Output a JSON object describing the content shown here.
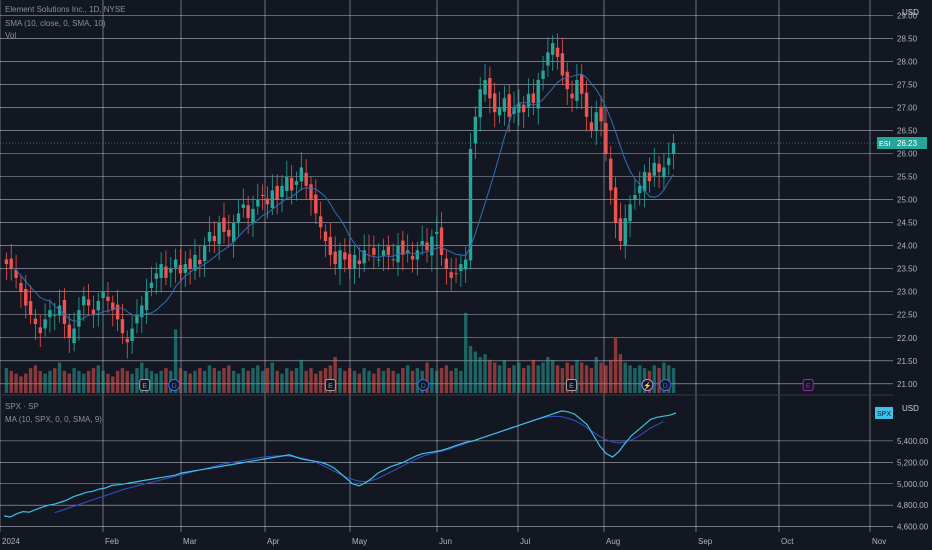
{
  "header": {
    "main_legend": "Element Solutions Inc., 1D, NYSE",
    "sma_legend": "SMA (10, close, 0, SMA, 10)",
    "vol_legend": "Vol",
    "sub_legend": "SPX · SP",
    "sub_ma_legend": "MA (10, SPX, 0, 0, SMA, 9)",
    "currency_main": "USD",
    "currency_sub": "USD"
  },
  "colors": {
    "background": "#131722",
    "grid": "#c8cbd4",
    "up": "#26a69a",
    "down": "#ef5350",
    "sma": "#2f6fb5",
    "spx": "#3fc1e8",
    "spx_ma": "#3452c8",
    "last_price_bg": "#26a69a",
    "event_e": "#9e9e9e",
    "event_d": "#3d6cf0",
    "event_future": "#9c27b0"
  },
  "chart_data": [
    {
      "type": "candlestick",
      "title": "Element Solutions Inc., 1D, NYSE",
      "symbol": "ESI",
      "last_price": "26.23",
      "ylim": [
        20.8,
        29.25
      ],
      "y_ticks": [
        "29.00",
        "28.50",
        "28.00",
        "27.50",
        "27.00",
        "26.50",
        "26.00",
        "25.50",
        "25.00",
        "24.50",
        "24.00",
        "23.50",
        "23.00",
        "22.50",
        "22.00",
        "21.50",
        "21.00"
      ],
      "x_ticks": [
        "2024",
        "Feb",
        "Mar",
        "Apr",
        "May",
        "Jun",
        "Jul",
        "Aug",
        "Sep",
        "Oct",
        "Nov"
      ],
      "closes": [
        23.6,
        23.5,
        23.3,
        23.0,
        22.7,
        22.5,
        22.3,
        22.1,
        22.4,
        22.6,
        22.5,
        22.7,
        22.3,
        22.0,
        22.2,
        22.6,
        22.9,
        22.7,
        22.5,
        22.8,
        23.0,
        22.8,
        22.6,
        22.4,
        22.1,
        21.9,
        22.2,
        22.5,
        22.7,
        23.0,
        23.2,
        23.4,
        23.6,
        23.3,
        23.5,
        23.7,
        23.4,
        23.6,
        23.5,
        23.8,
        23.6,
        24.0,
        24.3,
        24.1,
        24.5,
        24.3,
        24.2,
        24.5,
        24.7,
        24.9,
        24.6,
        24.8,
        25.0,
        25.1,
        24.9,
        25.2,
        25.0,
        25.3,
        25.5,
        25.2,
        25.4,
        25.7,
        25.3,
        25.0,
        24.7,
        24.4,
        24.1,
        23.8,
        23.6,
        23.9,
        23.7,
        23.5,
        23.8,
        23.6,
        23.9,
        24.0,
        23.8,
        23.7,
        23.9,
        23.8,
        23.7,
        24.0,
        23.8,
        23.9,
        23.7,
        23.9,
        24.1,
        23.9,
        24.2,
        24.3,
        23.8,
        23.5,
        23.3,
        23.4,
        23.6,
        23.7,
        26.1,
        26.8,
        27.4,
        27.6,
        27.2,
        26.9,
        27.0,
        27.2,
        26.8,
        27.0,
        27.1,
        26.9,
        27.3,
        27.1,
        27.6,
        27.8,
        28.2,
        28.4,
        28.1,
        27.7,
        27.4,
        27.2,
        27.6,
        27.3,
        26.8,
        26.5,
        26.9,
        26.7,
        26.0,
        25.2,
        24.5,
        24.1,
        24.6,
        24.9,
        25.1,
        25.3,
        25.6,
        25.4,
        25.8,
        25.6,
        25.7,
        25.9,
        26.23
      ],
      "sma_line_start_index": 1,
      "volume_ylim": [
        0,
        3.0
      ],
      "volumes_relative": [
        0.9,
        0.8,
        0.7,
        0.6,
        0.7,
        0.9,
        1.0,
        0.8,
        0.7,
        0.8,
        0.9,
        1.1,
        0.8,
        0.7,
        0.9,
        0.8,
        0.7,
        0.8,
        0.9,
        1.0,
        0.8,
        0.7,
        0.6,
        0.8,
        0.9,
        0.8,
        0.7,
        0.9,
        1.1,
        0.9,
        0.8,
        0.7,
        0.8,
        0.9,
        0.8,
        2.3,
        0.9,
        0.8,
        0.7,
        0.8,
        0.9,
        0.8,
        1.0,
        0.9,
        0.8,
        0.9,
        1.0,
        0.8,
        0.7,
        0.9,
        0.8,
        0.9,
        1.0,
        0.8,
        0.9,
        1.1,
        0.8,
        0.7,
        0.9,
        0.8,
        0.9,
        1.2,
        0.8,
        0.9,
        0.7,
        0.8,
        0.9,
        1.0,
        1.3,
        0.9,
        0.8,
        0.9,
        0.8,
        0.7,
        0.9,
        0.8,
        0.7,
        0.9,
        0.8,
        0.9,
        0.8,
        0.7,
        0.9,
        1.0,
        0.8,
        0.9,
        0.8,
        1.1,
        0.9,
        0.8,
        0.9,
        1.0,
        0.8,
        0.9,
        0.8,
        2.9,
        1.7,
        1.5,
        1.3,
        1.4,
        1.2,
        1.1,
        1.0,
        1.2,
        0.9,
        1.0,
        1.1,
        0.9,
        1.0,
        1.2,
        1.0,
        1.1,
        1.3,
        1.2,
        1.0,
        0.9,
        1.1,
        1.0,
        1.2,
        1.1,
        1.0,
        0.9,
        1.3,
        1.1,
        1.0,
        1.2,
        2.0,
        1.4,
        1.1,
        1.0,
        0.9,
        1.0,
        0.9,
        0.8,
        1.0,
        0.9,
        1.1,
        1.0,
        0.9
      ]
    },
    {
      "type": "line",
      "title": "SPX · SP",
      "ylim": [
        4550,
        5800
      ],
      "y_ticks": [
        "5,400.00",
        "5,200.00",
        "5,000.00",
        "4,800.00",
        "4,600.00"
      ],
      "y_tick_values": [
        5400,
        5200,
        5000,
        4800,
        4600
      ],
      "values": [
        4700,
        4690,
        4720,
        4740,
        4735,
        4760,
        4780,
        4800,
        4810,
        4830,
        4850,
        4880,
        4900,
        4920,
        4930,
        4950,
        4960,
        4985,
        4990,
        5000,
        5010,
        5020,
        5030,
        5040,
        5050,
        5060,
        5070,
        5080,
        5100,
        5110,
        5120,
        5130,
        5140,
        5150,
        5160,
        5170,
        5180,
        5190,
        5200,
        5210,
        5220,
        5230,
        5240,
        5250,
        5260,
        5270,
        5250,
        5230,
        5220,
        5210,
        5200,
        5180,
        5150,
        5100,
        5050,
        5000,
        4980,
        5010,
        5050,
        5100,
        5130,
        5160,
        5180,
        5200,
        5230,
        5260,
        5280,
        5290,
        5300,
        5310,
        5330,
        5350,
        5370,
        5390,
        5400,
        5420,
        5440,
        5460,
        5480,
        5500,
        5520,
        5540,
        5560,
        5580,
        5600,
        5620,
        5640,
        5660,
        5680,
        5670,
        5650,
        5600,
        5550,
        5450,
        5350,
        5280,
        5250,
        5300,
        5380,
        5450,
        5500,
        5550,
        5600,
        5620,
        5630,
        5640,
        5660
      ],
      "ma_values": [
        null,
        null,
        null,
        null,
        null,
        null,
        null,
        null,
        4730,
        4750,
        4770,
        4790,
        4810,
        4830,
        4850,
        4870,
        4890,
        4910,
        4930,
        4950,
        4965,
        4980,
        4995,
        5010,
        5025,
        5040,
        5055,
        5070,
        5085,
        5100,
        5115,
        5130,
        5145,
        5160,
        5175,
        5190,
        5200,
        5210,
        5220,
        5230,
        5240,
        5250,
        5255,
        5260,
        5262,
        5258,
        5250,
        5240,
        5225,
        5205,
        5180,
        5150,
        5120,
        5090,
        5060,
        5040,
        5025,
        5020,
        5030,
        5050,
        5080,
        5110,
        5140,
        5170,
        5200,
        5230,
        5255,
        5275,
        5290,
        5305,
        5320,
        5340,
        5360,
        5380,
        5400,
        5420,
        5440,
        5460,
        5480,
        5500,
        5520,
        5540,
        5560,
        5580,
        5600,
        5615,
        5625,
        5630,
        5625,
        5610,
        5590,
        5560,
        5520,
        5480,
        5440,
        5410,
        5390,
        5380,
        5390,
        5410,
        5440,
        5480,
        5520,
        5550,
        5580
      ],
      "sub_label": "SPX"
    }
  ],
  "events": [
    {
      "label": "E",
      "kind": "e",
      "x": 0.162
    },
    {
      "label": "D",
      "kind": "d",
      "x": 0.195
    },
    {
      "label": "E",
      "kind": "e",
      "x": 0.37
    },
    {
      "label": "D",
      "kind": "d",
      "x": 0.474
    },
    {
      "label": "E",
      "kind": "e",
      "x": 0.64
    },
    {
      "label": "⚡",
      "kind": "split",
      "x": 0.725
    },
    {
      "label": "D",
      "kind": "d",
      "x": 0.745
    },
    {
      "label": "E",
      "kind": "future",
      "x": 0.905
    }
  ]
}
